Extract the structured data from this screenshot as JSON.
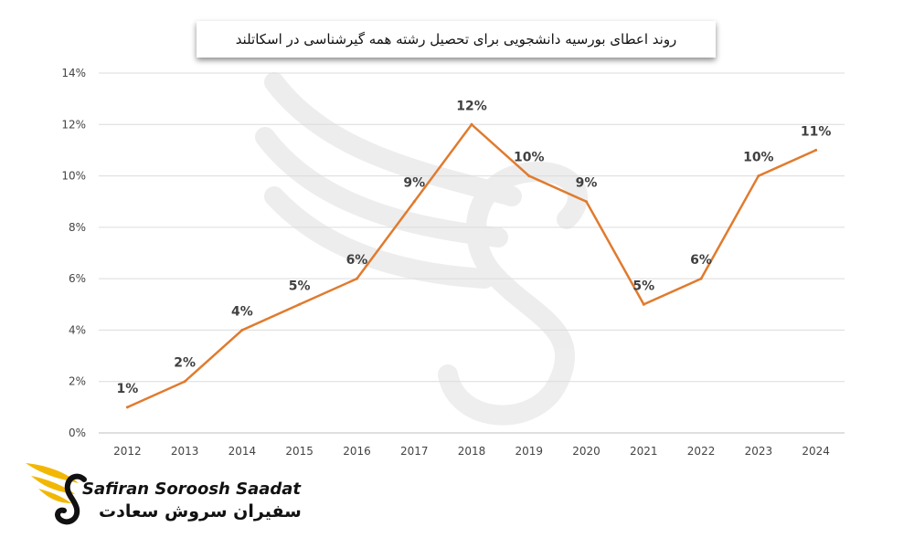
{
  "chart_data": {
    "type": "line",
    "title": "روند اعطای بورسیه دانشجویی برای تحصیل رشته همه گیرشناسی در اسکاتلند",
    "xlabel": "",
    "ylabel": "",
    "categories": [
      "2012",
      "2013",
      "2014",
      "2015",
      "2016",
      "2017",
      "2018",
      "2019",
      "2020",
      "2021",
      "2022",
      "2023",
      "2024"
    ],
    "series": [
      {
        "values": [
          1,
          2,
          4,
          5,
          6,
          9,
          12,
          10,
          9,
          5,
          6,
          10,
          11
        ]
      }
    ],
    "data_labels": [
      "1%",
      "2%",
      "4%",
      "5%",
      "6%",
      "9%",
      "12%",
      "10%",
      "9%",
      "5%",
      "6%",
      "10%",
      "11%"
    ],
    "y_ticks": [
      "0%",
      "2%",
      "4%",
      "6%",
      "8%",
      "10%",
      "12%",
      "14%"
    ],
    "ylim": [
      0,
      14
    ],
    "y_unit": "%",
    "grid": true,
    "line_color": "#e07b2e"
  },
  "watermark": {
    "logo_text_en": "Safiran Soroosh Saadat",
    "logo_text_fa": "سفیران سروش سعادت"
  },
  "brand": {
    "name_en": "Safiran Soroosh Saadat",
    "name_fa": "سفیران سروش سعادت",
    "wing_color": "#f2b705"
  }
}
